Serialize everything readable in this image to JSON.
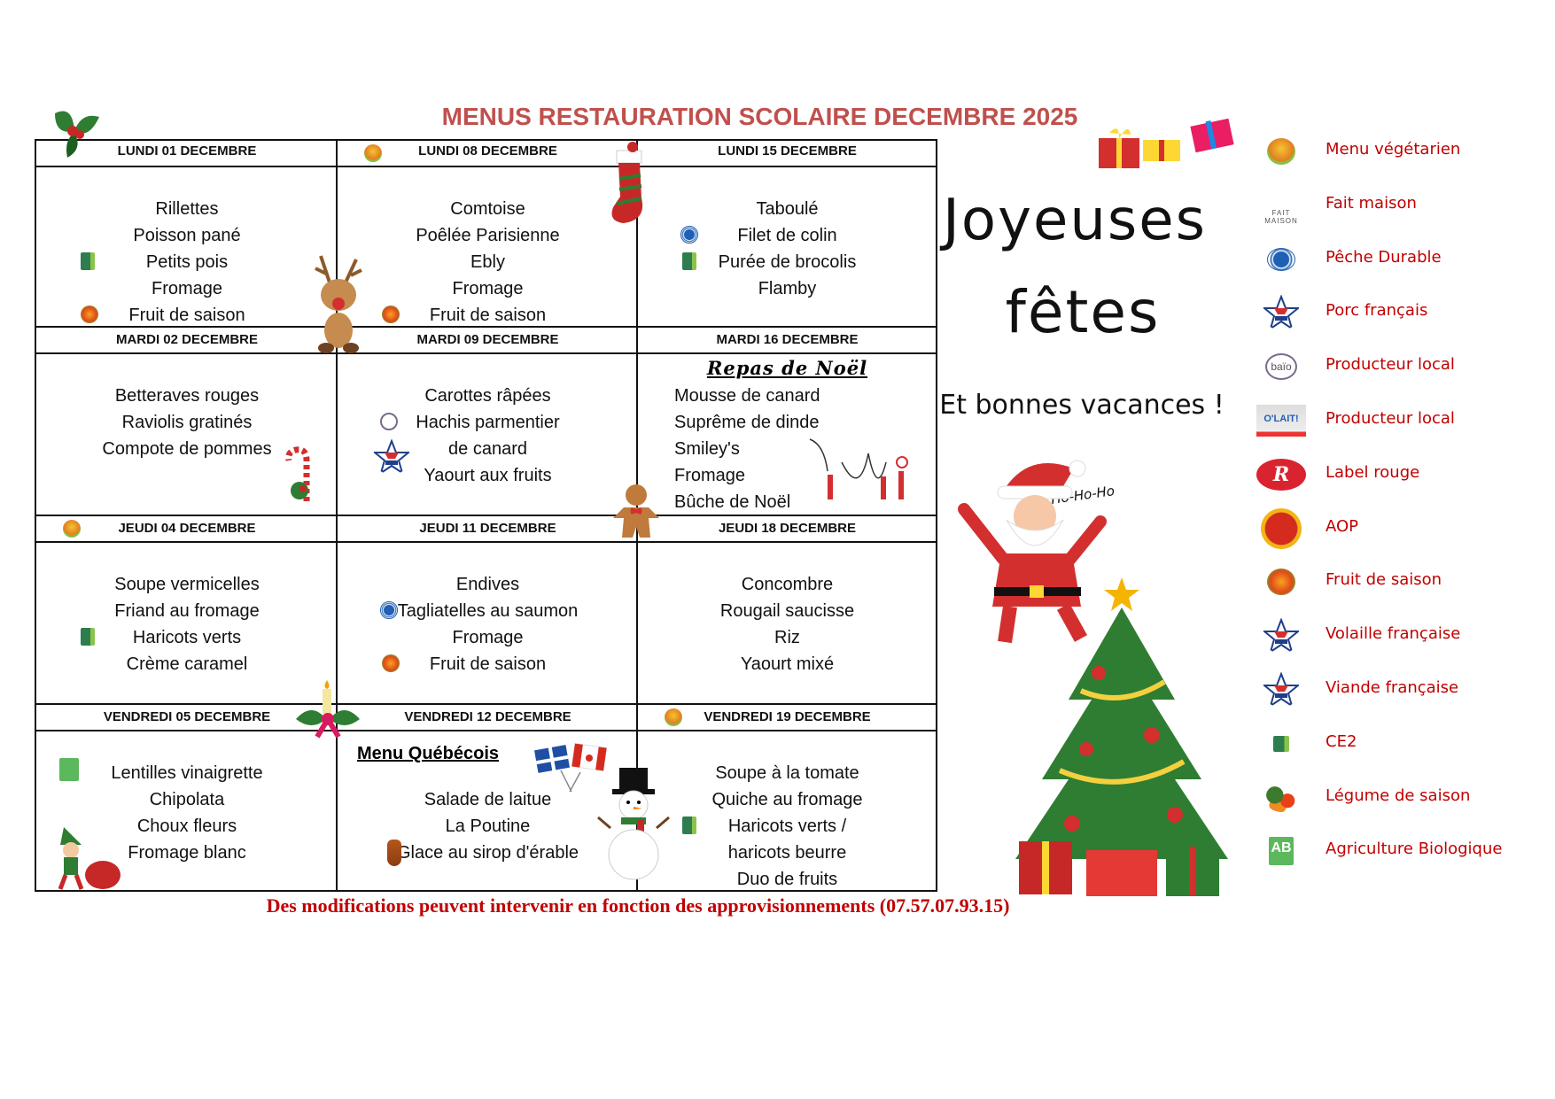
{
  "title": "MENUS RESTAURATION SCOLAIRE DECEMBRE 2025",
  "days": [
    {
      "header": "LUNDI 01 DECEMBRE",
      "items": [
        "Rillettes",
        "Poisson pané",
        "Petits pois",
        "Fromage",
        "Fruit de saison"
      ],
      "icons": [
        {
          "icon": "ce2",
          "line": 2
        },
        {
          "icon": "fruit",
          "line": 4
        }
      ]
    },
    {
      "header": "LUNDI 08 DECEMBRE",
      "header_icon": "veg",
      "items": [
        "Comtoise",
        "Poêlée Parisienne",
        "Ebly",
        "Fromage",
        "Fruit de saison"
      ],
      "icons": [
        {
          "icon": "fruit",
          "line": 4
        }
      ]
    },
    {
      "header": "LUNDI 15 DECEMBRE",
      "items": [
        "Taboulé",
        "Filet de colin",
        "Purée de brocolis",
        "Flamby"
      ],
      "icons": [
        {
          "icon": "peche",
          "line": 1
        },
        {
          "icon": "ce2",
          "line": 2
        }
      ]
    },
    {
      "header": "MARDI 02 DECEMBRE",
      "items": [
        "Betteraves rouges",
        "Raviolis gratinés",
        "Compote de pommes"
      ],
      "icons": []
    },
    {
      "header": "MARDI 09 DECEMBRE",
      "items": [
        "Carottes râpées",
        "Hachis parmentier",
        "de canard",
        "Yaourt aux fruits"
      ],
      "icons": [
        {
          "icon": "baio",
          "line": 1
        },
        {
          "icon": "porc",
          "line": 2
        }
      ]
    },
    {
      "header": "MARDI 16 DECEMBRE",
      "subtitle": "Repas de Noël",
      "align": "left",
      "items": [
        "Mousse de canard",
        "Suprême de dinde",
        "Smiley's",
        "Fromage",
        "Bûche de Noël"
      ],
      "icons": []
    },
    {
      "header": "JEUDI 04 DECEMBRE",
      "header_icon": "veg",
      "items": [
        "Soupe vermicelles",
        "Friand au fromage",
        "Haricots verts",
        "Crème caramel"
      ],
      "icons": [
        {
          "icon": "ce2",
          "line": 2
        }
      ]
    },
    {
      "header": "JEUDI 11 DECEMBRE",
      "items": [
        "Endives",
        "Tagliatelles au saumon",
        "Fromage",
        "Fruit de saison"
      ],
      "icons": [
        {
          "icon": "peche",
          "line": 1
        },
        {
          "icon": "fruit",
          "line": 3
        }
      ]
    },
    {
      "header": "JEUDI 18 DECEMBRE",
      "items": [
        "Concombre",
        "Rougail saucisse",
        "Riz",
        "Yaourt mixé"
      ],
      "icons": []
    },
    {
      "header": "VENDREDI 05 DECEMBRE",
      "items": [
        "Lentilles vinaigrette",
        "Chipolata",
        "Choux fleurs",
        "Fromage blanc"
      ],
      "icons": [
        {
          "icon": "ab",
          "line": 0
        }
      ]
    },
    {
      "header": "VENDREDI 12 DECEMBRE",
      "subtitle": "Menu Québécois",
      "items": [
        "Salade de laitue",
        "La Poutine",
        "Glace au sirop d'érable"
      ],
      "icons": [
        {
          "icon": "maple",
          "line": 2
        }
      ]
    },
    {
      "header": "VENDREDI 19 DECEMBRE",
      "header_icon": "veg",
      "items": [
        "Soupe à la tomate",
        "Quiche au fromage",
        "Haricots verts /",
        "haricots beurre",
        "Duo de fruits"
      ],
      "icons": [
        {
          "icon": "ce2",
          "line": 2
        }
      ]
    }
  ],
  "greeting": {
    "line1": "Joyeuses",
    "line2": "fêtes",
    "line3": "Et bonnes vacances !",
    "santa_text": "Ho-Ho-Ho"
  },
  "legend": [
    {
      "icon": "veg",
      "label": "Menu végétarien"
    },
    {
      "icon": "maison",
      "label": "Fait maison",
      "icon_text": "FAIT MAISON"
    },
    {
      "icon": "peche",
      "label": "Pêche Durable"
    },
    {
      "icon": "porc",
      "label": "Porc français"
    },
    {
      "icon": "baio",
      "label": "Producteur local",
      "icon_text": "baïo"
    },
    {
      "icon": "lait",
      "label": "Producteur local",
      "icon_text": "O'LAIT!"
    },
    {
      "icon": "lr",
      "label": "Label rouge",
      "icon_text": "label Rouge"
    },
    {
      "icon": "aop",
      "label": "AOP"
    },
    {
      "icon": "fruit",
      "label": "Fruit de saison"
    },
    {
      "icon": "volaille",
      "label": "Volaille française"
    },
    {
      "icon": "viande",
      "label": "Viande française"
    },
    {
      "icon": "ce2",
      "label": "CE2"
    },
    {
      "icon": "leg",
      "label": "Légume de saison"
    },
    {
      "icon": "ab",
      "label": "Agriculture Biologique",
      "icon_text": "AB"
    }
  ],
  "footer": "Des modifications peuvent intervenir en fonction des approvisionnements  (07.57.07.93.15)",
  "colors": {
    "title": "#c0504d",
    "legend_text": "#c00000",
    "footer": "#c00000",
    "grid": "#111111"
  }
}
